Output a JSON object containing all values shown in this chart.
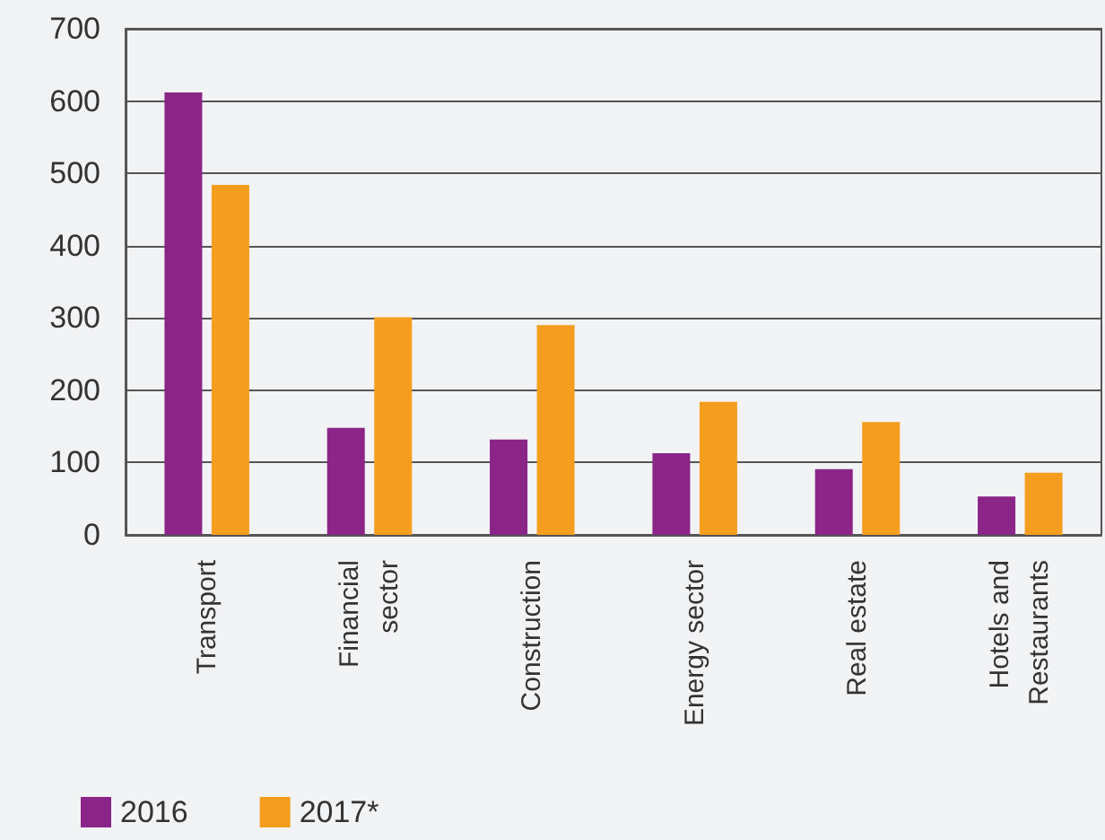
{
  "chart_data": {
    "type": "bar",
    "categories": [
      "Transport",
      "Financial\nsector",
      "Construction",
      "Energy sector",
      "Real estate",
      "Hotels and\nRestaurants"
    ],
    "series": [
      {
        "name": "2016",
        "color": "#8b2587",
        "values": [
          612,
          148,
          132,
          113,
          91,
          53
        ]
      },
      {
        "name": "2017*",
        "color": "#f59d1e",
        "values": [
          484,
          301,
          290,
          184,
          156,
          86
        ]
      }
    ],
    "ylim": [
      0,
      700
    ],
    "yticks": [
      0,
      100,
      200,
      300,
      400,
      500,
      600,
      700
    ],
    "grid": "y",
    "legend": "bottom left"
  }
}
